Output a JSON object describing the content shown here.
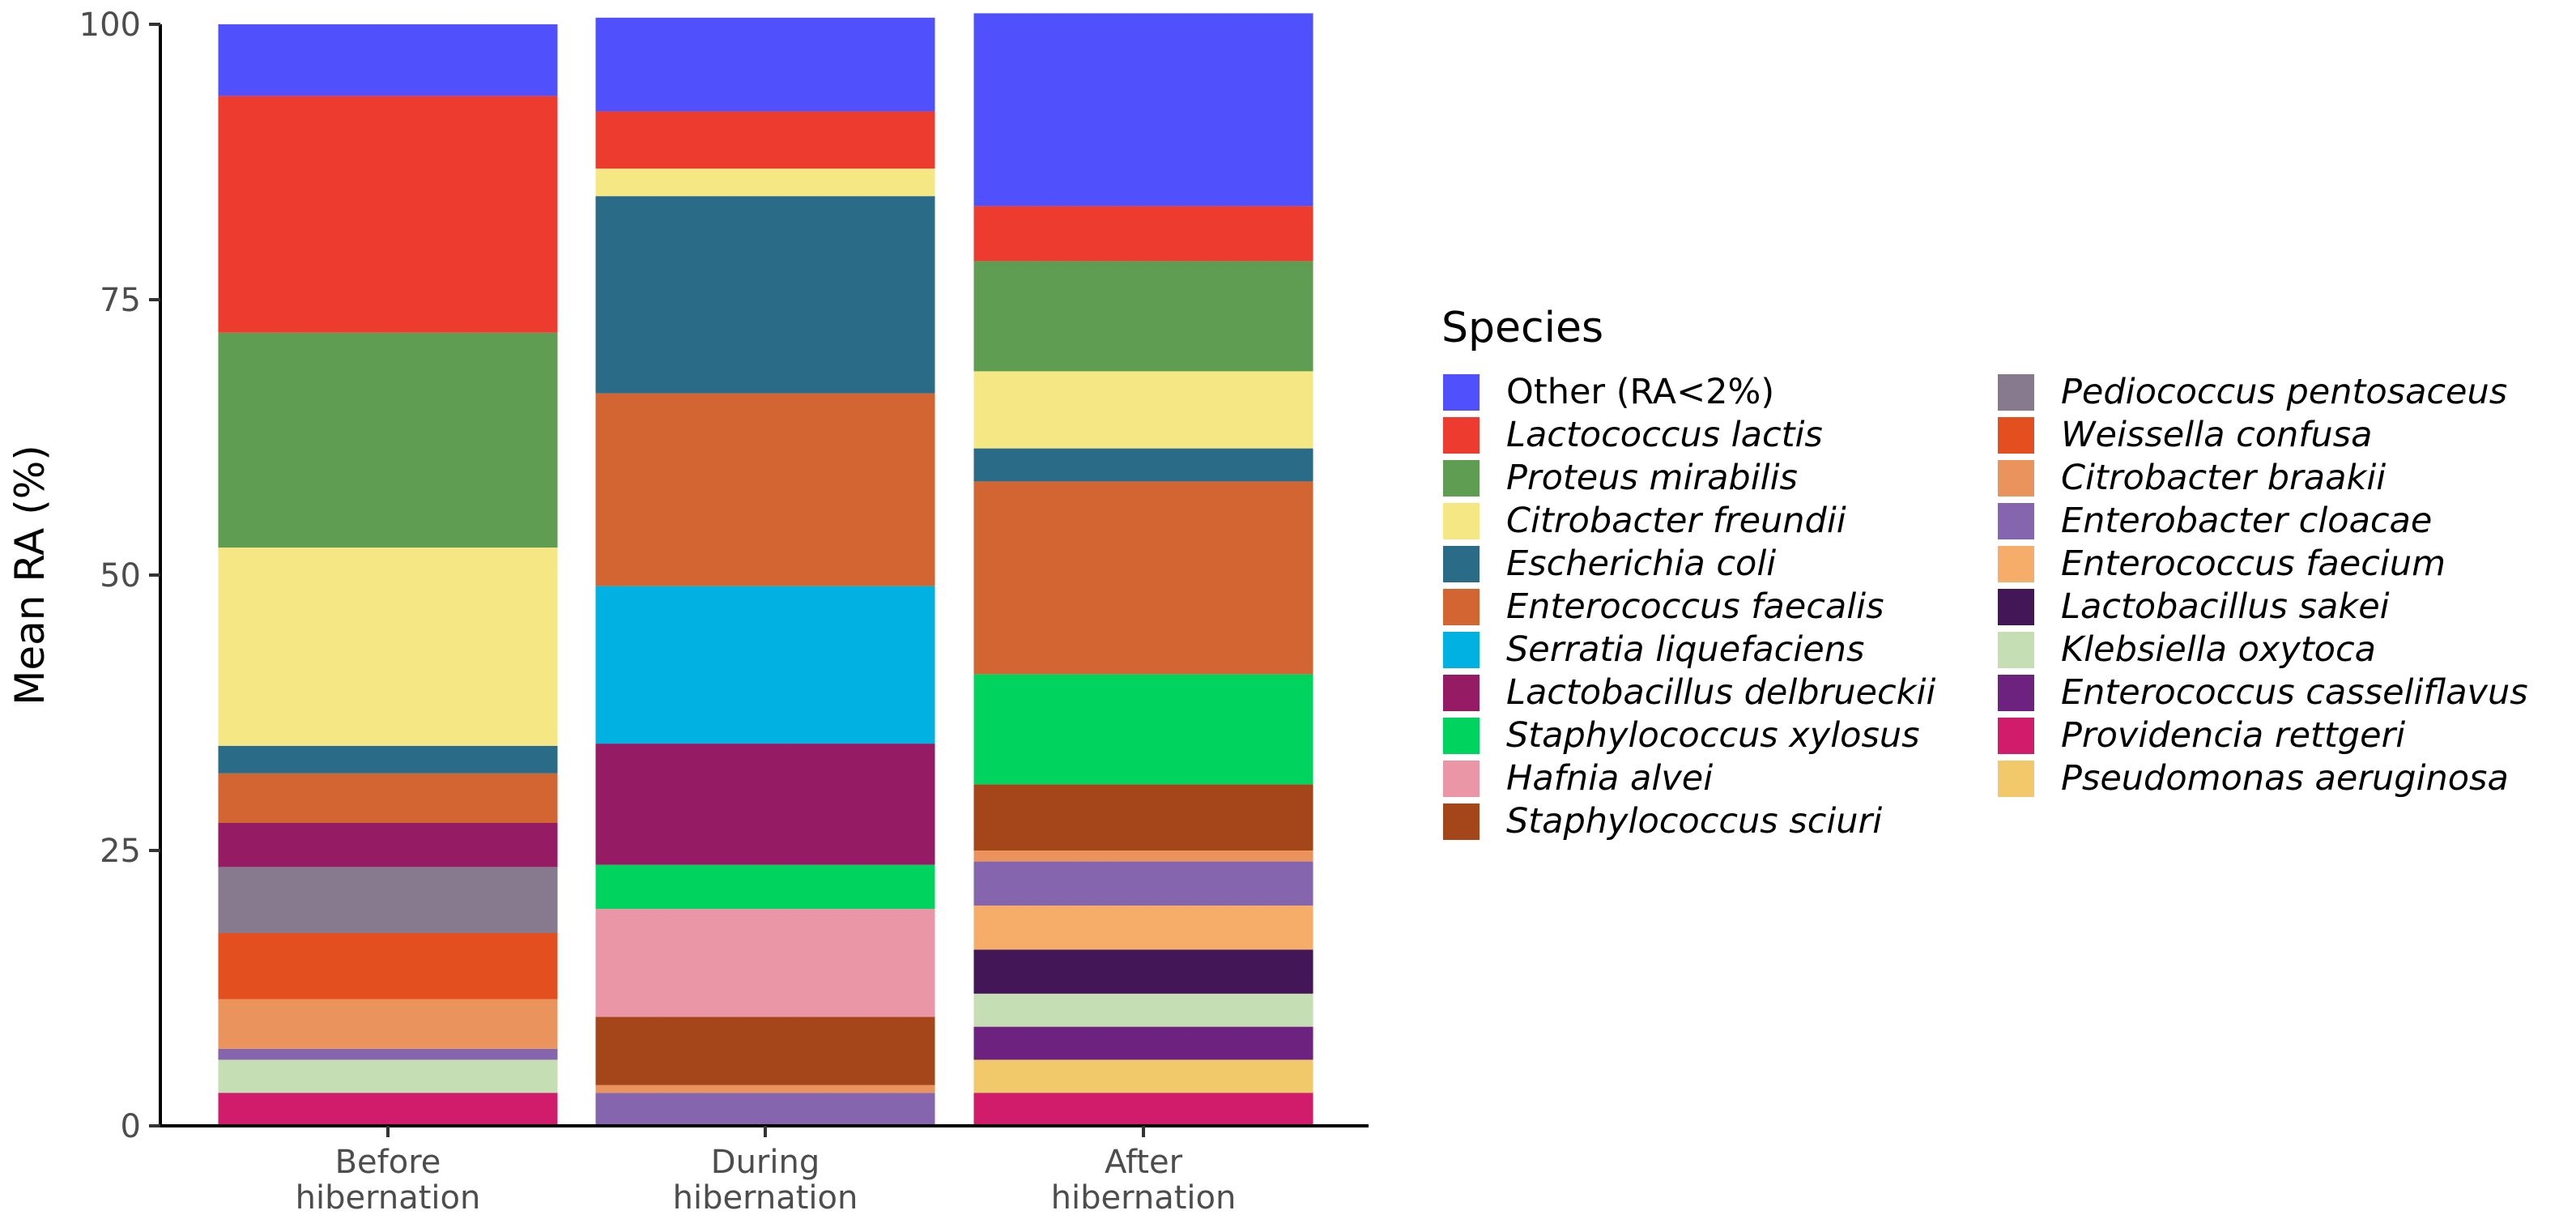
{
  "chart_data": {
    "type": "bar",
    "stacked": true,
    "title": "",
    "xlabel": "",
    "ylabel": "Mean RA (%)",
    "ylim": [
      0,
      100
    ],
    "yticks": [
      "0",
      "25",
      "50",
      "75",
      "100"
    ],
    "categories": [
      [
        "Before",
        "hibernation"
      ],
      [
        "During",
        "hibernation"
      ],
      [
        "After",
        "hibernation"
      ]
    ],
    "legend": {
      "title": "Species",
      "position": "right"
    },
    "series": [
      {
        "name": "Providencia rettgeri",
        "color": "#D01C6B",
        "italic": true,
        "values": [
          3,
          0,
          3
        ]
      },
      {
        "name": "Pseudomonas aeruginosa",
        "color": "#F2C96A",
        "italic": true,
        "values": [
          0,
          0,
          3
        ]
      },
      {
        "name": "Enterococcus casseliflavus",
        "color": "#6E2280",
        "italic": true,
        "values": [
          0,
          0,
          3
        ]
      },
      {
        "name": "Klebsiella oxytoca",
        "color": "#C6DEB3",
        "italic": true,
        "values": [
          3,
          0,
          3
        ]
      },
      {
        "name": "Lactobacillus sakei",
        "color": "#421657",
        "italic": true,
        "values": [
          0,
          0,
          4
        ]
      },
      {
        "name": "Enterococcus faecium",
        "color": "#F5AD69",
        "italic": true,
        "values": [
          0,
          0,
          4
        ]
      },
      {
        "name": "Enterobacter cloacae",
        "color": "#8565AD",
        "italic": true,
        "values": [
          1,
          3,
          4
        ]
      },
      {
        "name": "Citrobacter braakii",
        "color": "#EB935C",
        "italic": true,
        "values": [
          4.5,
          0.7,
          1
        ]
      },
      {
        "name": "Weissella confusa",
        "color": "#E44F1F",
        "italic": true,
        "values": [
          6,
          0,
          0
        ]
      },
      {
        "name": "Pediococcus pentosaceus",
        "color": "#877A8F",
        "italic": true,
        "values": [
          6,
          0,
          0
        ]
      },
      {
        "name": "Staphylococcus sciuri",
        "color": "#A5461A",
        "italic": true,
        "values": [
          0,
          6.2,
          6
        ]
      },
      {
        "name": "Hafnia alvei",
        "color": "#EA96A7",
        "italic": true,
        "values": [
          0,
          9.8,
          0
        ]
      },
      {
        "name": "Staphylococcus xylosus",
        "color": "#00D45F",
        "italic": true,
        "values": [
          0,
          4,
          10
        ]
      },
      {
        "name": "Lactobacillus delbrueckii",
        "color": "#951B65",
        "italic": true,
        "values": [
          4,
          11,
          0
        ]
      },
      {
        "name": "Serratia liquefaciens",
        "color": "#00B1E1",
        "italic": true,
        "values": [
          0,
          14.3,
          0
        ]
      },
      {
        "name": "Enterococcus faecalis",
        "color": "#D36532",
        "italic": true,
        "values": [
          4.5,
          17.5,
          17.5
        ]
      },
      {
        "name": "Escherichia coli",
        "color": "#2A6B87",
        "italic": true,
        "values": [
          2.5,
          17.9,
          3
        ]
      },
      {
        "name": "Citrobacter freundii",
        "color": "#F4E784",
        "italic": true,
        "values": [
          18,
          2.5,
          7
        ]
      },
      {
        "name": "Proteus mirabilis",
        "color": "#5F9D53",
        "italic": true,
        "values": [
          19.5,
          0,
          10
        ]
      },
      {
        "name": "Lactococcus lactis",
        "color": "#EE3B30",
        "italic": true,
        "values": [
          21.5,
          5.2,
          5
        ]
      },
      {
        "name": "Other (RA<2%)",
        "color": "#5051FC",
        "italic": false,
        "values": [
          6.5,
          8.5,
          17.5
        ]
      }
    ],
    "legend_order": [
      [
        "Other (RA<2%)",
        "Lactococcus lactis",
        "Proteus mirabilis",
        "Citrobacter freundii",
        "Escherichia coli",
        "Enterococcus faecalis",
        "Serratia liquefaciens",
        "Lactobacillus delbrueckii",
        "Staphylococcus xylosus",
        "Hafnia alvei",
        "Staphylococcus sciuri"
      ],
      [
        "Pediococcus pentosaceus",
        "Weissella confusa",
        "Citrobacter braakii",
        "Enterobacter cloacae",
        "Enterococcus faecium",
        "Lactobacillus sakei",
        "Klebsiella oxytoca",
        "Enterococcus casseliflavus",
        "Providencia rettgeri",
        "Pseudomonas aeruginosa"
      ]
    ]
  }
}
